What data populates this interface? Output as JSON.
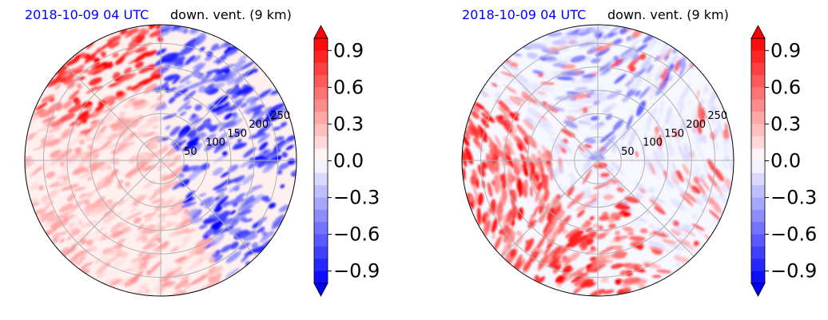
{
  "chart_data": [
    {
      "type": "heatmap",
      "projection": "polar",
      "title_left": "2018-10-09 04 UTC",
      "title_right": "down. vent. (9 km)",
      "radial_ticks": [
        "50",
        "100",
        "150",
        "200",
        "250"
      ],
      "rlim": [
        0,
        290
      ],
      "grid": true,
      "colormap": "bwr",
      "colorbar": {
        "vmin": -1.0,
        "vmax": 1.0,
        "levels": 20,
        "extend": "both",
        "ticks": [
          "0.9",
          "0.6",
          "0.3",
          "0.0",
          "−0.3",
          "−0.6",
          "−0.9"
        ]
      }
    },
    {
      "type": "heatmap",
      "projection": "polar",
      "title_left": "2018-10-09 04 UTC",
      "title_right": "down. vent. (9 km)",
      "radial_ticks": [
        "50",
        "100",
        "150",
        "200",
        "250"
      ],
      "rlim": [
        0,
        290
      ],
      "grid": true,
      "colormap": "bwr",
      "colorbar": {
        "vmin": -1.0,
        "vmax": 1.0,
        "levels": 20,
        "extend": "both",
        "ticks": [
          "0.9",
          "0.6",
          "0.3",
          "0.0",
          "−0.3",
          "−0.6",
          "−0.9"
        ]
      }
    }
  ],
  "colors": {
    "positive": "#ff0000",
    "negative": "#0000ff",
    "title_date": "#0000ff",
    "grid": "#b0b0b0"
  }
}
